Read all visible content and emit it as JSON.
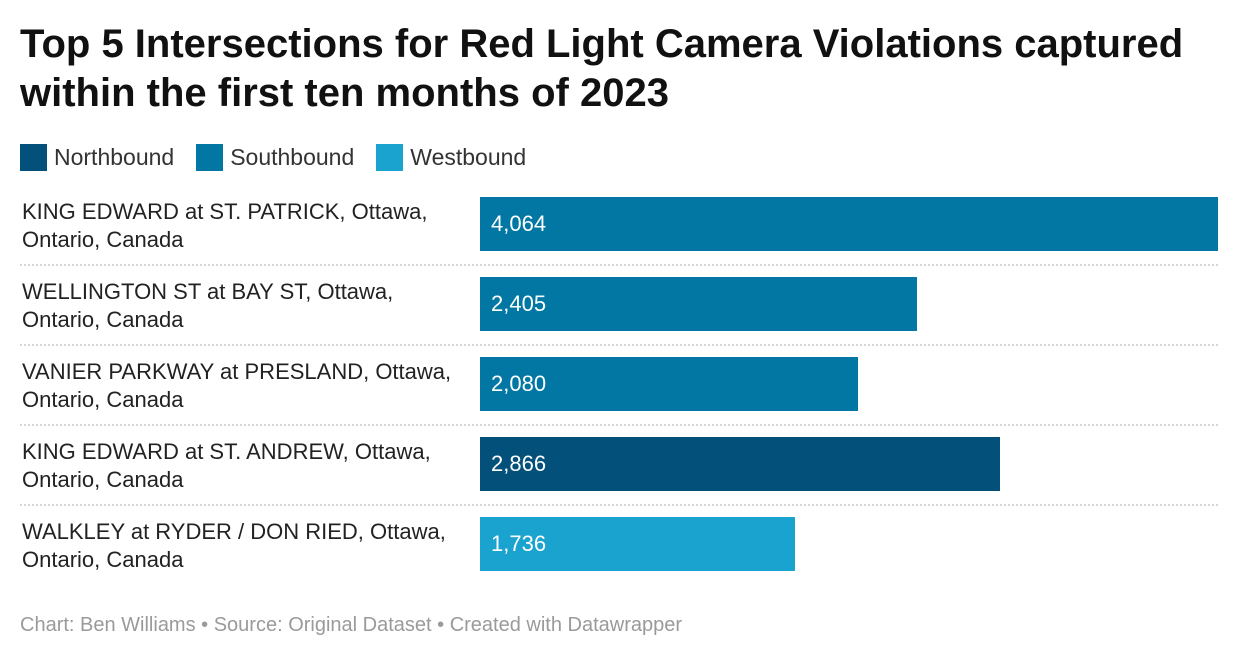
{
  "chart_data": {
    "type": "bar",
    "orientation": "horizontal",
    "title": "Top 5 Intersections for Red Light Camera Violations captured within the first ten months of 2023",
    "legend": {
      "placement": "top-left",
      "entries": [
        {
          "label": "Northbound",
          "color": "#03507a"
        },
        {
          "label": "Southbound",
          "color": "#0277a3"
        },
        {
          "label": "Westbound",
          "color": "#1ba3d0"
        }
      ]
    },
    "categories": [
      "KING EDWARD at ST. PATRICK, Ottawa, Ontario, Canada",
      "WELLINGTON ST at BAY ST, Ottawa, Ontario, Canada",
      "VANIER PARKWAY at PRESLAND, Ottawa, Ontario, Canada",
      "KING EDWARD at ST. ANDREW, Ottawa, Ontario, Canada",
      "WALKLEY at RYDER / DON RIED, Ottawa, Ontario, Canada"
    ],
    "bars": [
      {
        "value": 4064,
        "value_label": "4,064",
        "direction": "Southbound"
      },
      {
        "value": 2405,
        "value_label": "2,405",
        "direction": "Southbound"
      },
      {
        "value": 2080,
        "value_label": "2,080",
        "direction": "Southbound"
      },
      {
        "value": 2866,
        "value_label": "2,866",
        "direction": "Northbound"
      },
      {
        "value": 1736,
        "value_label": "1,736",
        "direction": "Westbound"
      }
    ],
    "xlim": [
      0,
      4064
    ],
    "grid": false
  },
  "footer": "Chart: Ben Williams • Source: Original Dataset • Created with Datawrapper"
}
